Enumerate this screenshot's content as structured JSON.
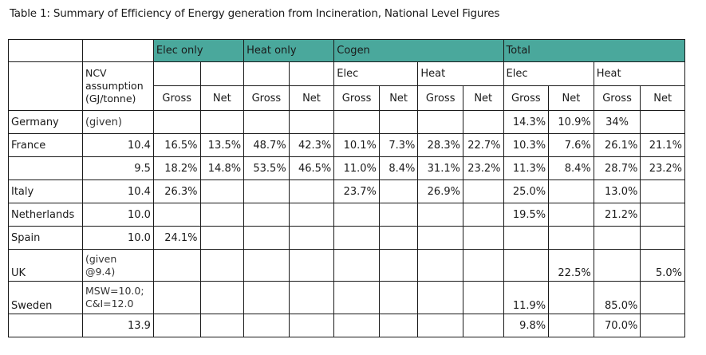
{
  "caption": "Table 1: Summary of Efficiency of Energy generation from Incineration, National Level Figures",
  "header": {
    "groups": [
      "Elec only",
      "Heat only",
      "Cogen",
      "Total"
    ],
    "ncv_label_1": "NCV",
    "ncv_label_2": "assumption",
    "ncv_label_3": "(GJ/tonne)",
    "cogen_elec": "Elec",
    "cogen_heat": "Heat",
    "total_elec": "Elec",
    "total_heat": "Heat",
    "gross": "Gross",
    "net": "Net"
  },
  "rows": [
    {
      "country": "Germany",
      "ncv": "(given)",
      "eo_g": "",
      "eo_n": "",
      "ho_g": "",
      "ho_n": "",
      "ce_g": "",
      "ce_n": "",
      "ch_g": "",
      "ch_n": "",
      "te_g": "14.3%",
      "te_n": "10.9%",
      "th_g": "34%",
      "th_n": ""
    },
    {
      "country": "France",
      "ncv": "10.4",
      "eo_g": "16.5%",
      "eo_n": "13.5%",
      "ho_g": "48.7%",
      "ho_n": "42.3%",
      "ce_g": "10.1%",
      "ce_n": "7.3%",
      "ch_g": "28.3%",
      "ch_n": "22.7%",
      "te_g": "10.3%",
      "te_n": "7.6%",
      "th_g": "26.1%",
      "th_n": "21.1%"
    },
    {
      "country": "",
      "ncv": "9.5",
      "eo_g": "18.2%",
      "eo_n": "14.8%",
      "ho_g": "53.5%",
      "ho_n": "46.5%",
      "ce_g": "11.0%",
      "ce_n": "8.4%",
      "ch_g": "31.1%",
      "ch_n": "23.2%",
      "te_g": "11.3%",
      "te_n": "8.4%",
      "th_g": "28.7%",
      "th_n": "23.2%"
    },
    {
      "country": "Italy",
      "ncv": "10.4",
      "eo_g": "26.3%",
      "eo_n": "",
      "ho_g": "",
      "ho_n": "",
      "ce_g": "23.7%",
      "ce_n": "",
      "ch_g": "26.9%",
      "ch_n": "",
      "te_g": "25.0%",
      "te_n": "",
      "th_g": "13.0%",
      "th_n": ""
    },
    {
      "country": "Netherlands",
      "ncv": "10.0",
      "eo_g": "",
      "eo_n": "",
      "ho_g": "",
      "ho_n": "",
      "ce_g": "",
      "ce_n": "",
      "ch_g": "",
      "ch_n": "",
      "te_g": "19.5%",
      "te_n": "",
      "th_g": "21.2%",
      "th_n": ""
    },
    {
      "country": "Spain",
      "ncv": "10.0",
      "eo_g": "24.1%",
      "eo_n": "",
      "ho_g": "",
      "ho_n": "",
      "ce_g": "",
      "ce_n": "",
      "ch_g": "",
      "ch_n": "",
      "te_g": "",
      "te_n": "",
      "th_g": "",
      "th_n": ""
    },
    {
      "country": "UK",
      "ncv_1": "(given",
      "ncv_2": "@9.4)",
      "eo_g": "",
      "eo_n": "",
      "ho_g": "",
      "ho_n": "",
      "ce_g": "",
      "ce_n": "",
      "ch_g": "",
      "ch_n": "",
      "te_g": "",
      "te_n": "22.5%",
      "th_g": "",
      "th_n": "5.0%"
    },
    {
      "country": "Sweden",
      "ncv_1": "MSW=10.0;",
      "ncv_2": "C&I=12.0",
      "eo_g": "",
      "eo_n": "",
      "ho_g": "",
      "ho_n": "",
      "ce_g": "",
      "ce_n": "",
      "ch_g": "",
      "ch_n": "",
      "te_g": "11.9%",
      "te_n": "",
      "th_g": "85.0%",
      "th_n": ""
    },
    {
      "country": "",
      "ncv": "13.9",
      "eo_g": "",
      "eo_n": "",
      "ho_g": "",
      "ho_n": "",
      "ce_g": "",
      "ce_n": "",
      "ch_g": "",
      "ch_n": "",
      "te_g": "9.8%",
      "te_n": "",
      "th_g": "70.0%",
      "th_n": ""
    }
  ],
  "colors": {
    "header_band": "#4aa89c"
  }
}
